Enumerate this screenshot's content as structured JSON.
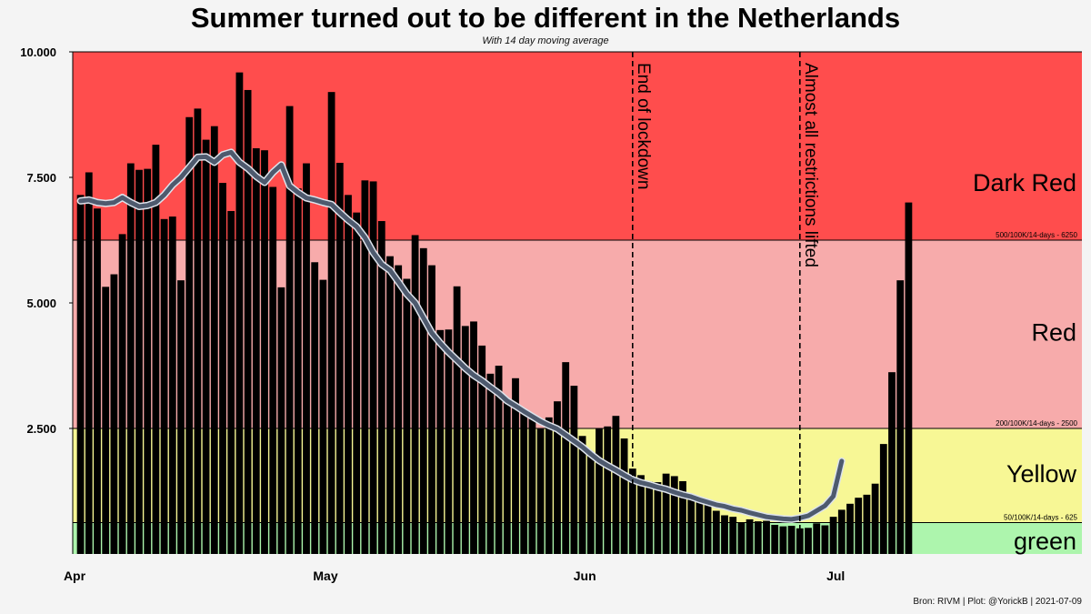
{
  "title": "Summer turned out to be different in the Netherlands",
  "subtitle": "With 14 day moving average",
  "footer": "Bron: RIVM | Plot: @YorickB  |  2021-07-09",
  "chart_data": {
    "type": "bar",
    "ylim": [
      0,
      10000
    ],
    "y_ticks": [
      {
        "value": 2500,
        "label": "2.500"
      },
      {
        "value": 5000,
        "label": "5.000"
      },
      {
        "value": 7500,
        "label": "7.500"
      },
      {
        "value": 10000,
        "label": "10.000"
      }
    ],
    "x_ticks": [
      {
        "day": 0,
        "label": "Apr"
      },
      {
        "day": 30,
        "label": "May"
      },
      {
        "day": 61,
        "label": "Jun"
      },
      {
        "day": 91,
        "label": "Jul"
      }
    ],
    "zones": [
      {
        "name": "green",
        "from": 0,
        "to": 625,
        "color": "#adf5ad",
        "threshold_label": "50/100K/14-days - 625"
      },
      {
        "name": "Yellow",
        "from": 625,
        "to": 2500,
        "color": "#f7f795",
        "threshold_label": "200/100K/14-days - 2500"
      },
      {
        "name": "Red",
        "from": 2500,
        "to": 6250,
        "color": "#f7abab",
        "threshold_label": "500/100K/14-days - 6250"
      },
      {
        "name": "Dark Red",
        "from": 6250,
        "to": 10000,
        "color": "#ff4d4d",
        "threshold_label": ""
      }
    ],
    "annotations": [
      {
        "day": 66.5,
        "label": "End of lockdown"
      },
      {
        "day": 86.5,
        "label": "Almost all restrictions lifted"
      }
    ],
    "daily_cases": [
      7150,
      7600,
      6880,
      5320,
      5570,
      6370,
      7780,
      7650,
      7670,
      8150,
      6670,
      6720,
      5450,
      8700,
      8870,
      8250,
      8520,
      7390,
      6830,
      9590,
      9240,
      8080,
      8040,
      7310,
      5310,
      8920,
      7280,
      7780,
      5810,
      5460,
      9200,
      7790,
      7150,
      6800,
      7440,
      7420,
      6630,
      5930,
      5750,
      5480,
      6350,
      6090,
      5750,
      4460,
      4470,
      5330,
      4540,
      4630,
      4150,
      3590,
      3750,
      3060,
      3500,
      2850,
      2720,
      2490,
      2720,
      3040,
      3820,
      3350,
      2350,
      2010,
      2500,
      2540,
      2750,
      2300,
      1700,
      1570,
      1440,
      1430,
      1600,
      1550,
      1450,
      1100,
      1030,
      990,
      860,
      770,
      740,
      620,
      690,
      650,
      660,
      580,
      550,
      560,
      510,
      520,
      610,
      570,
      740,
      880,
      1000,
      1120,
      1180,
      1400,
      2190,
      3620,
      5450,
      7000
    ],
    "moving_average": [
      7030,
      7050,
      7000,
      6980,
      7000,
      7100,
      7000,
      6920,
      6940,
      7000,
      7150,
      7350,
      7500,
      7700,
      7900,
      7910,
      7800,
      7950,
      8000,
      7800,
      7680,
      7520,
      7400,
      7600,
      7750,
      7330,
      7200,
      7090,
      7050,
      7000,
      6960,
      6800,
      6650,
      6520,
      6300,
      6000,
      5770,
      5650,
      5420,
      5180,
      5000,
      4700,
      4400,
      4200,
      4020,
      3860,
      3700,
      3560,
      3450,
      3320,
      3200,
      3050,
      2950,
      2840,
      2740,
      2640,
      2560,
      2490,
      2370,
      2250,
      2130,
      1990,
      1860,
      1760,
      1670,
      1570,
      1480,
      1420,
      1380,
      1330,
      1290,
      1230,
      1180,
      1140,
      1080,
      1030,
      980,
      950,
      900,
      870,
      820,
      780,
      740,
      720,
      700,
      690,
      720,
      760,
      860,
      960,
      1150,
      1850
    ]
  }
}
